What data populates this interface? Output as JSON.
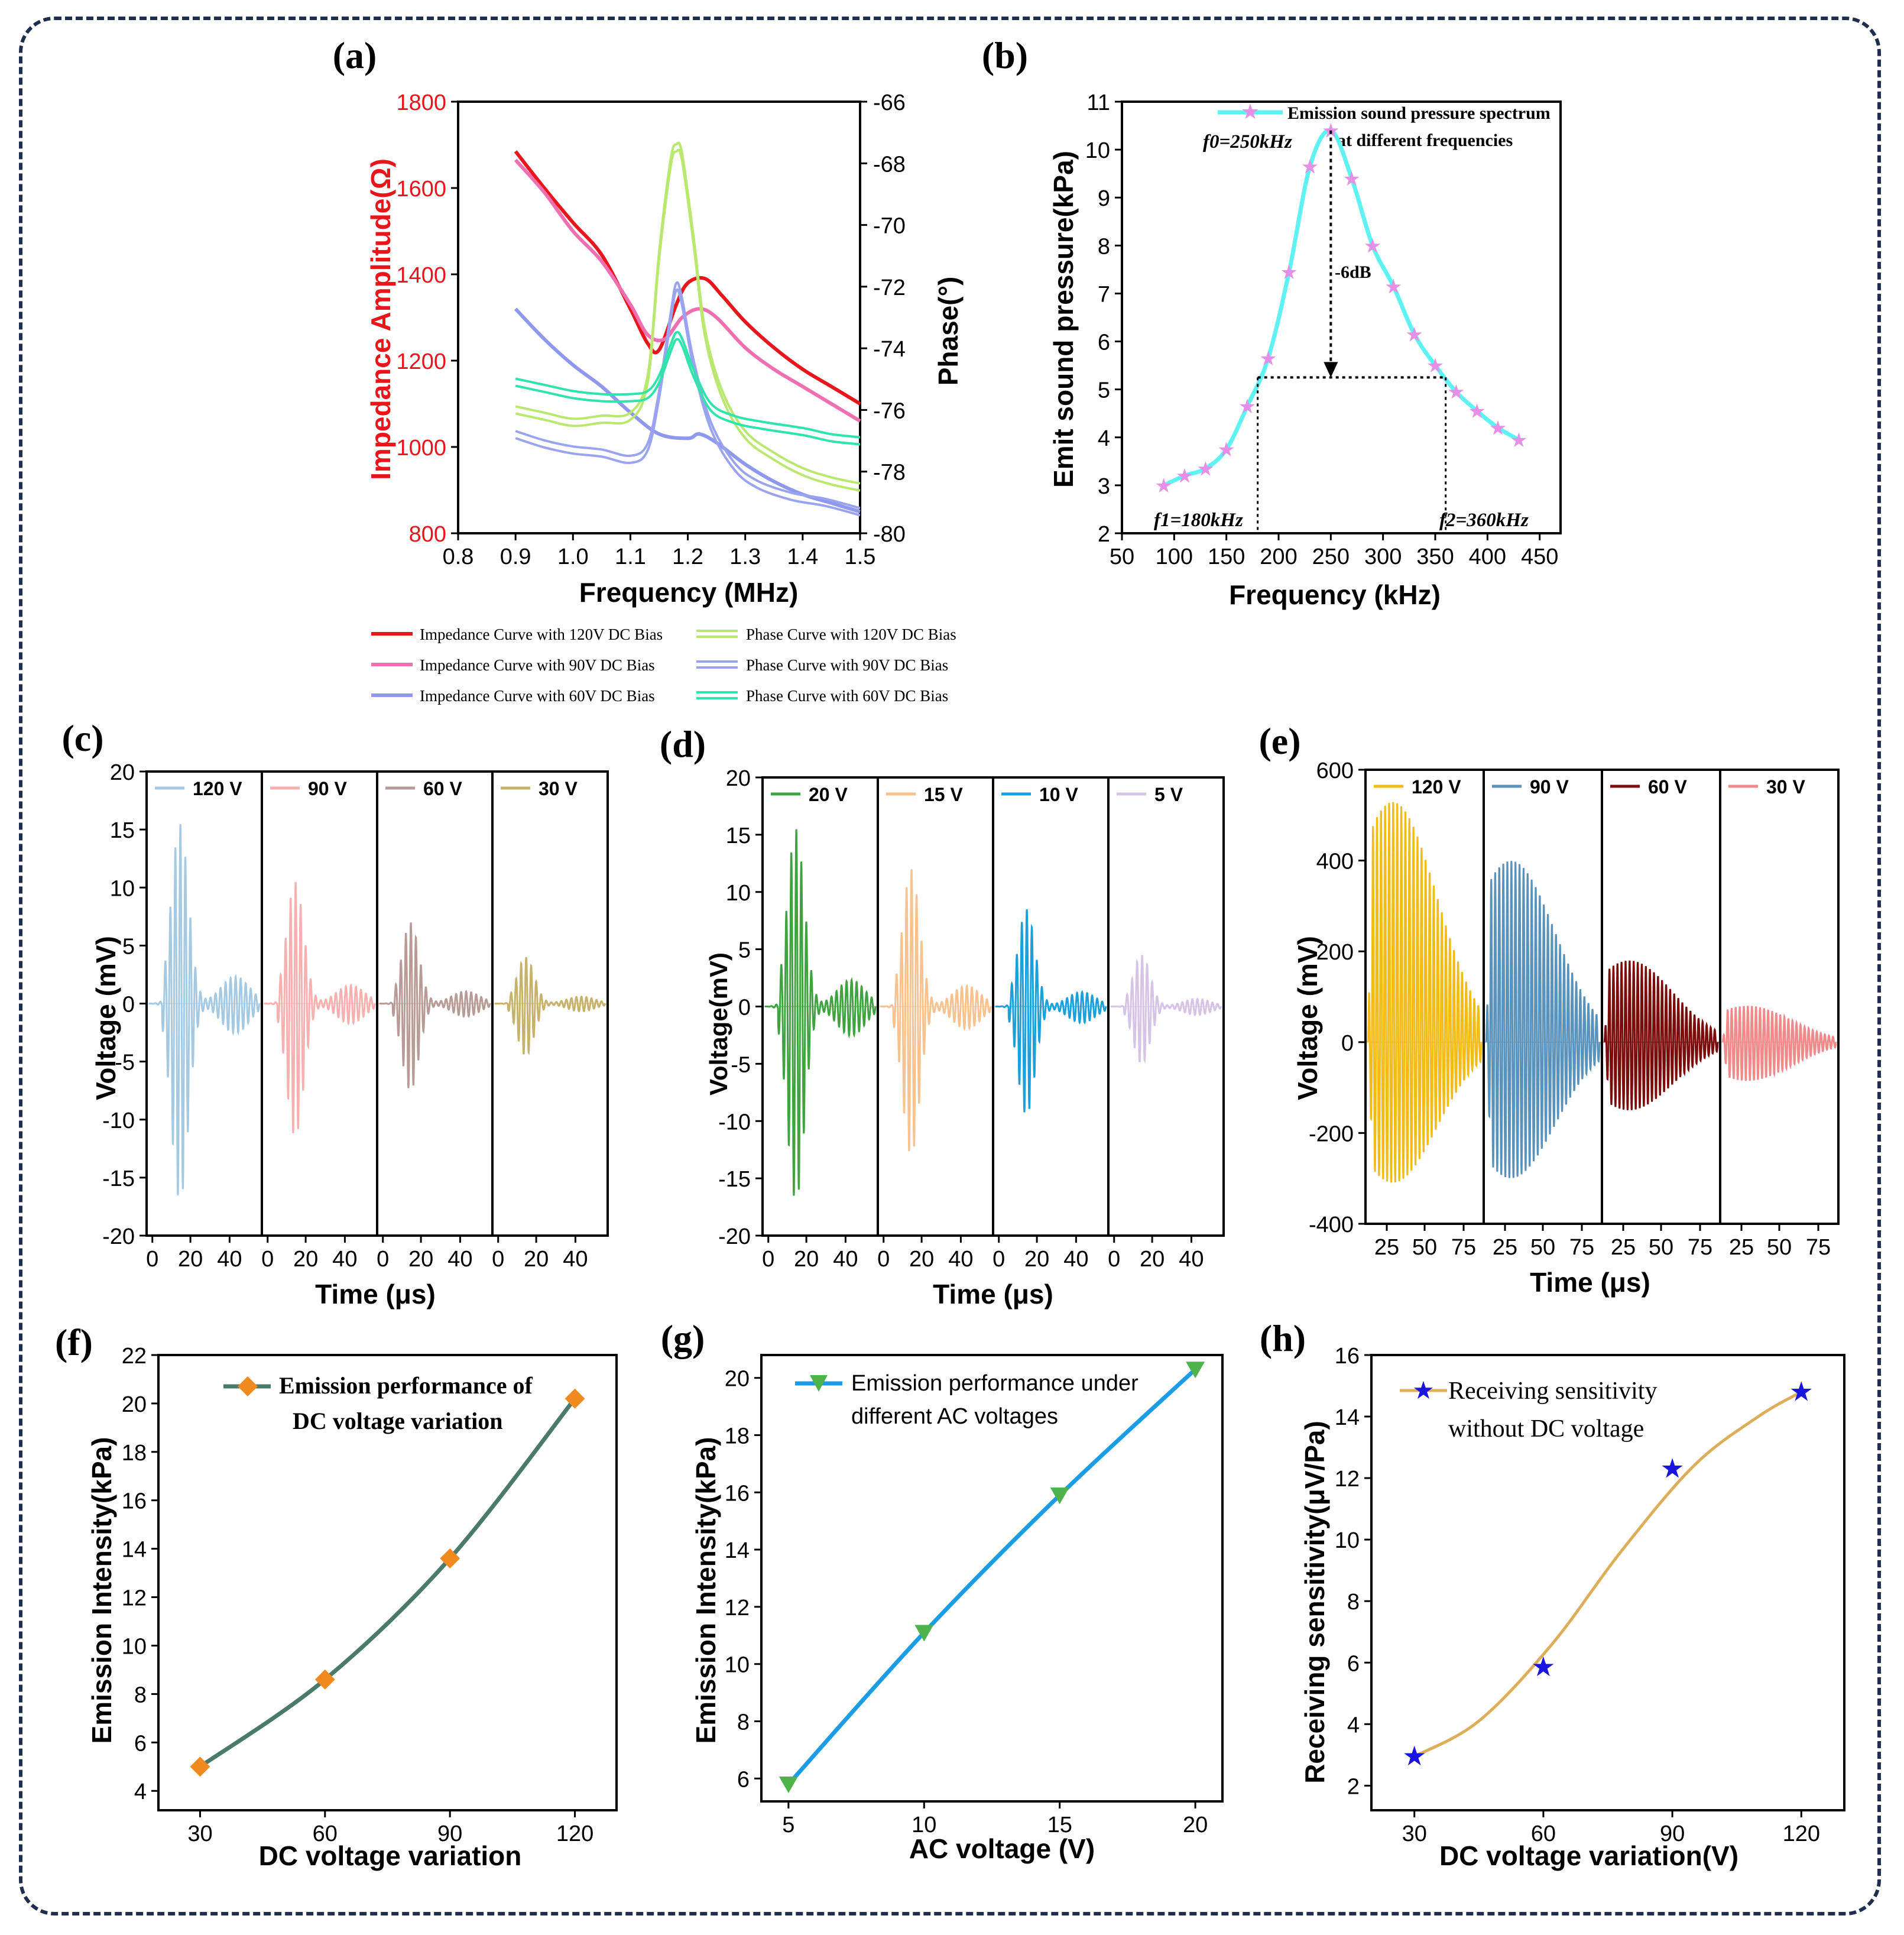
{
  "colors": {
    "frame": "#1f2d4f",
    "axis": "#000000",
    "red": "#e8151b",
    "pink": "#ef6fb0",
    "blue": "#8f97ee",
    "lime": "#b9e86f",
    "lav": "#9aa3f2",
    "teal": "#2fe3ad",
    "cyan": "#5ef2f2",
    "star": "#e58fe6",
    "green": "#3fa43f",
    "peach": "#f7c28e",
    "sky": "#1aa0db",
    "lilac": "#d6c3e6",
    "lightblue": "#a4c9e3",
    "rose": "#f6b0b0",
    "mauve": "#b89a97",
    "olive": "#c7b26b",
    "gold": "#f1bb18",
    "steel": "#5a92b9",
    "maroon": "#7a0c0c",
    "salmon": "#f08a8a",
    "teal_dark": "#4a7a6a",
    "orange": "#f08a1e",
    "blue_line": "#1a9ce6",
    "green_marker": "#4db34a",
    "tan": "#dcae5a",
    "star_blue": "#1a14e0"
  },
  "chart_data": [
    {
      "panel": "(a)",
      "type": "line",
      "xlabel": "Frequency (MHz)",
      "ylabel_left": "Impedance Amplitude(Ω)",
      "ylabel_right": "Phase(°)",
      "xlim": [
        0.8,
        1.5
      ],
      "xticks": [
        "0.8",
        "0.9",
        "1.0",
        "1.1",
        "1.2",
        "1.3",
        "1.4",
        "1.5"
      ],
      "ylim_left": [
        800,
        1800
      ],
      "yticks_left": [
        "800",
        "1000",
        "1200",
        "1400",
        "1600",
        "1800"
      ],
      "ylim_right": [
        -80,
        -66
      ],
      "yticks_right": [
        "-80",
        "-78",
        "-76",
        "-74",
        "-72",
        "-70",
        "-68",
        "-66"
      ],
      "series": [
        {
          "name": "Impedance Curve with 120V DC Bias",
          "axis": "left",
          "color": "red",
          "x": [
            0.9,
            0.95,
            1.0,
            1.05,
            1.1,
            1.13,
            1.15,
            1.18,
            1.2,
            1.23,
            1.26,
            1.3,
            1.35,
            1.4,
            1.45,
            1.5
          ],
          "y": [
            1685,
            1600,
            1520,
            1445,
            1320,
            1240,
            1225,
            1330,
            1380,
            1390,
            1350,
            1290,
            1230,
            1180,
            1140,
            1100
          ]
        },
        {
          "name": "Impedance Curve with 90V DC Bias",
          "axis": "left",
          "color": "pink",
          "x": [
            0.9,
            0.95,
            1.0,
            1.05,
            1.1,
            1.13,
            1.16,
            1.19,
            1.22,
            1.25,
            1.3,
            1.35,
            1.4,
            1.45,
            1.5
          ],
          "y": [
            1665,
            1590,
            1500,
            1430,
            1330,
            1260,
            1250,
            1300,
            1320,
            1300,
            1230,
            1180,
            1140,
            1100,
            1060
          ]
        },
        {
          "name": "Impedance Curve with 60V DC Bias",
          "axis": "left",
          "color": "blue",
          "x": [
            0.9,
            0.95,
            1.0,
            1.05,
            1.1,
            1.15,
            1.2,
            1.22,
            1.25,
            1.3,
            1.35,
            1.4,
            1.45,
            1.5
          ],
          "y": [
            1320,
            1250,
            1190,
            1140,
            1080,
            1030,
            1020,
            1030,
            1010,
            960,
            920,
            890,
            870,
            850
          ]
        },
        {
          "name": "Phase Curve with 120V DC Bias",
          "axis": "right",
          "color": "lime",
          "x": [
            0.9,
            0.95,
            1.0,
            1.05,
            1.1,
            1.13,
            1.15,
            1.17,
            1.18,
            1.19,
            1.21,
            1.23,
            1.26,
            1.3,
            1.35,
            1.4,
            1.45,
            1.5
          ],
          "y": [
            -76.0,
            -76.2,
            -76.4,
            -76.3,
            -76.2,
            -75.0,
            -71.0,
            -68.0,
            -67.5,
            -67.8,
            -70.5,
            -73.5,
            -75.5,
            -76.8,
            -77.5,
            -78.0,
            -78.3,
            -78.5
          ]
        },
        {
          "name": "Phase Curve with 90V DC Bias",
          "axis": "right",
          "color": "lav",
          "x": [
            0.9,
            0.95,
            1.0,
            1.05,
            1.1,
            1.13,
            1.15,
            1.17,
            1.18,
            1.19,
            1.21,
            1.24,
            1.28,
            1.32,
            1.38,
            1.44,
            1.5
          ],
          "y": [
            -76.8,
            -77.1,
            -77.3,
            -77.4,
            -77.6,
            -77.2,
            -75.5,
            -73.0,
            -72.0,
            -72.5,
            -74.5,
            -76.5,
            -77.8,
            -78.4,
            -78.8,
            -79.0,
            -79.3
          ]
        },
        {
          "name": "Phase Curve with 60V DC Bias",
          "axis": "right",
          "color": "teal",
          "x": [
            0.9,
            0.95,
            1.0,
            1.05,
            1.1,
            1.13,
            1.15,
            1.17,
            1.18,
            1.19,
            1.21,
            1.24,
            1.28,
            1.33,
            1.4,
            1.45,
            1.5
          ],
          "y": [
            -75.1,
            -75.3,
            -75.5,
            -75.6,
            -75.6,
            -75.5,
            -75.0,
            -74.0,
            -73.6,
            -73.8,
            -74.8,
            -75.9,
            -76.3,
            -76.5,
            -76.7,
            -76.9,
            -77.0
          ]
        }
      ]
    },
    {
      "panel": "(b)",
      "type": "line",
      "xlabel": "Frequency  (kHz)",
      "ylabel": "Emit sound pressure(kPa)",
      "xlim": [
        50,
        470
      ],
      "xticks": [
        "50",
        "100",
        "150",
        "200",
        "250",
        "300",
        "350",
        "400",
        "450"
      ],
      "ylim": [
        2,
        11
      ],
      "yticks": [
        "2",
        "3",
        "4",
        "5",
        "6",
        "7",
        "8",
        "9",
        "10",
        "11"
      ],
      "legend": [
        "Emission sound pressure spectrum",
        "at different frequencies"
      ],
      "annotations": {
        "peak": "f0=250kHz",
        "drop": "-6dB",
        "low": "f1=180kHz",
        "high": "f2=360kHz"
      },
      "half_level": 5.25,
      "series": [
        {
          "name": "Emission sound pressure spectrum at different frequencies",
          "color": "cyan",
          "x": [
            90,
            110,
            130,
            150,
            170,
            190,
            210,
            230,
            250,
            270,
            290,
            310,
            330,
            350,
            370,
            390,
            410,
            430
          ],
          "y": [
            3.0,
            3.2,
            3.35,
            3.75,
            4.65,
            5.65,
            7.45,
            9.65,
            10.4,
            9.4,
            8.0,
            7.15,
            6.15,
            5.5,
            4.95,
            4.55,
            4.2,
            3.95
          ]
        }
      ]
    },
    {
      "panel": "(c)",
      "type": "line",
      "xlabel": "Time (μs)",
      "ylabel": "Voltage (mV)",
      "ylim": [
        -20,
        20
      ],
      "yticks": [
        "-20",
        "-15",
        "-10",
        "-5",
        "0",
        "5",
        "10",
        "15",
        "20"
      ],
      "xticks": [
        "0",
        "20",
        "40"
      ],
      "subpanels": [
        {
          "label": "120 V",
          "color": "lightblue",
          "peak": 15.5,
          "trough": -17
        },
        {
          "label": "90 V",
          "color": "rose",
          "peak": 10.5,
          "trough": -11.5
        },
        {
          "label": "60 V",
          "color": "mauve",
          "peak": 7,
          "trough": -7.5
        },
        {
          "label": "30 V",
          "color": "olive",
          "peak": 4,
          "trough": -4.5
        }
      ]
    },
    {
      "panel": "(d)",
      "type": "line",
      "xlabel": "Time (μs)",
      "ylabel": "Voltage(mV)",
      "ylim": [
        -20,
        20
      ],
      "yticks": [
        "-20",
        "-15",
        "-10",
        "-5",
        "0",
        "5",
        "10",
        "15",
        "20"
      ],
      "xticks": [
        "0",
        "20",
        "40"
      ],
      "subpanels": [
        {
          "label": "20 V",
          "color": "green",
          "peak": 15.5,
          "trough": -17
        },
        {
          "label": "15 V",
          "color": "peach",
          "peak": 12,
          "trough": -13
        },
        {
          "label": "10 V",
          "color": "sky",
          "peak": 8.5,
          "trough": -9.5
        },
        {
          "label": "5 V",
          "color": "lilac",
          "peak": 4.5,
          "trough": -5
        }
      ]
    },
    {
      "panel": "(e)",
      "type": "line",
      "xlabel": "Time (μs)",
      "ylabel": "Voltage (mV)",
      "ylim": [
        -400,
        600
      ],
      "yticks": [
        "-400",
        "-200",
        "0",
        "200",
        "400",
        "600"
      ],
      "xticks": [
        "25",
        "50",
        "75"
      ],
      "subpanels": [
        {
          "label": "120 V",
          "color": "gold",
          "peak": 530,
          "trough": -310
        },
        {
          "label": "90 V",
          "color": "steel",
          "peak": 400,
          "trough": -300
        },
        {
          "label": "60 V",
          "color": "maroon",
          "peak": 180,
          "trough": -150
        },
        {
          "label": "30 V",
          "color": "salmon",
          "peak": 80,
          "trough": -85
        }
      ]
    },
    {
      "panel": "(f)",
      "type": "line",
      "xlabel": "DC voltage variation",
      "ylabel": "Emission Intensity(kPa)",
      "xlim": [
        20,
        130
      ],
      "xticks": [
        "30",
        "60",
        "90",
        "120"
      ],
      "ylim": [
        3.2,
        22
      ],
      "yticks": [
        "4",
        "6",
        "8",
        "10",
        "12",
        "14",
        "16",
        "18",
        "20",
        "22"
      ],
      "legend": [
        "Emission performance of",
        "DC voltage variation"
      ],
      "series": [
        {
          "name": "Emission performance of DC voltage variation",
          "color": "teal_dark",
          "x": [
            30,
            60,
            90,
            120
          ],
          "y": [
            5.0,
            8.6,
            13.6,
            20.2
          ]
        }
      ]
    },
    {
      "panel": "(g)",
      "type": "line",
      "xlabel": "AC voltage (V)",
      "ylabel": "Emission Intensity(kPa)",
      "xlim": [
        4,
        21
      ],
      "xticks": [
        "5",
        "10",
        "15",
        "20"
      ],
      "ylim": [
        5.2,
        20.8
      ],
      "yticks": [
        "6",
        "8",
        "10",
        "12",
        "14",
        "16",
        "18",
        "20"
      ],
      "legend": [
        "Emission performance under",
        "different AC voltages"
      ],
      "series": [
        {
          "name": "Emission performance under different AC voltages",
          "color": "blue_line",
          "x": [
            5,
            10,
            15,
            20
          ],
          "y": [
            5.8,
            11.1,
            15.9,
            20.3
          ]
        }
      ]
    },
    {
      "panel": "(h)",
      "type": "line",
      "xlabel": "DC voltage variation(V)",
      "ylabel": "Receiving sensitivity(μV/Pa)",
      "xlim": [
        20,
        130
      ],
      "xticks": [
        "30",
        "60",
        "90",
        "120"
      ],
      "ylim": [
        1.2,
        16
      ],
      "yticks": [
        "2",
        "4",
        "6",
        "8",
        "10",
        "12",
        "14",
        "16"
      ],
      "legend": [
        "Receiving sensitivity",
        "without DC voltage"
      ],
      "series": [
        {
          "name": "Receiving sensitivity without DC voltage",
          "color": "tan",
          "x": [
            30,
            60,
            90,
            120
          ],
          "y": [
            2.95,
            5.85,
            12.3,
            14.8
          ]
        }
      ]
    }
  ]
}
